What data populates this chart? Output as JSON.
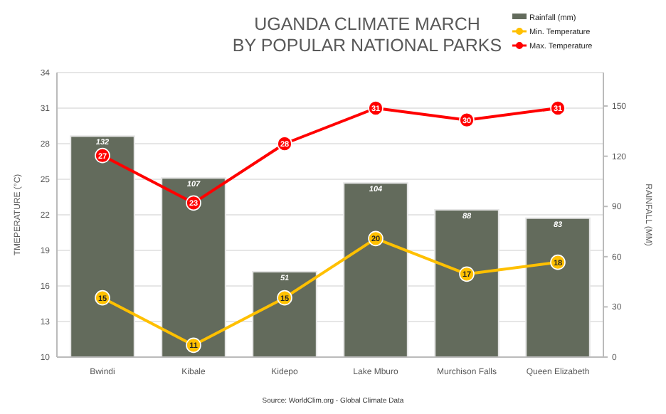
{
  "chart_data": {
    "type": "bar",
    "title": "UGANDA CLIMATE MARCH\nBY POPULAR NATIONAL PARKS",
    "ylabel": "TMEPERATURE (°C)",
    "y2label": "RAINFALL (MM)",
    "categories": [
      "Bwindi",
      "Kibale",
      "Kidepo",
      "Lake Mburo",
      "Murchison Falls",
      "Queen Elizabeth"
    ],
    "series": [
      {
        "name": "Rainfall (mm)",
        "axis": "y2",
        "color": "#636b5c",
        "values": [
          132,
          107,
          51,
          104,
          88,
          83
        ]
      },
      {
        "name": "Min. Temperature",
        "type": "line",
        "color": "#ffc000",
        "values": [
          15,
          11,
          15,
          20,
          17,
          18
        ]
      },
      {
        "name": "Max. Temperature",
        "type": "line",
        "color": "#ff0000",
        "values": [
          27,
          23,
          28,
          31,
          30,
          31
        ]
      }
    ],
    "ylim": [
      10,
      34
    ],
    "yticks": [
      10,
      13,
      16,
      19,
      22,
      25,
      28,
      31,
      34
    ],
    "y2lim": [
      0,
      170
    ],
    "y2ticks": [
      0,
      30,
      60,
      90,
      120,
      150
    ],
    "grid": "y",
    "legend": "top right",
    "marker": "circle",
    "data_labels": true,
    "annotations": [
      "Source: WorldClim.org - Global Climate Data"
    ]
  }
}
